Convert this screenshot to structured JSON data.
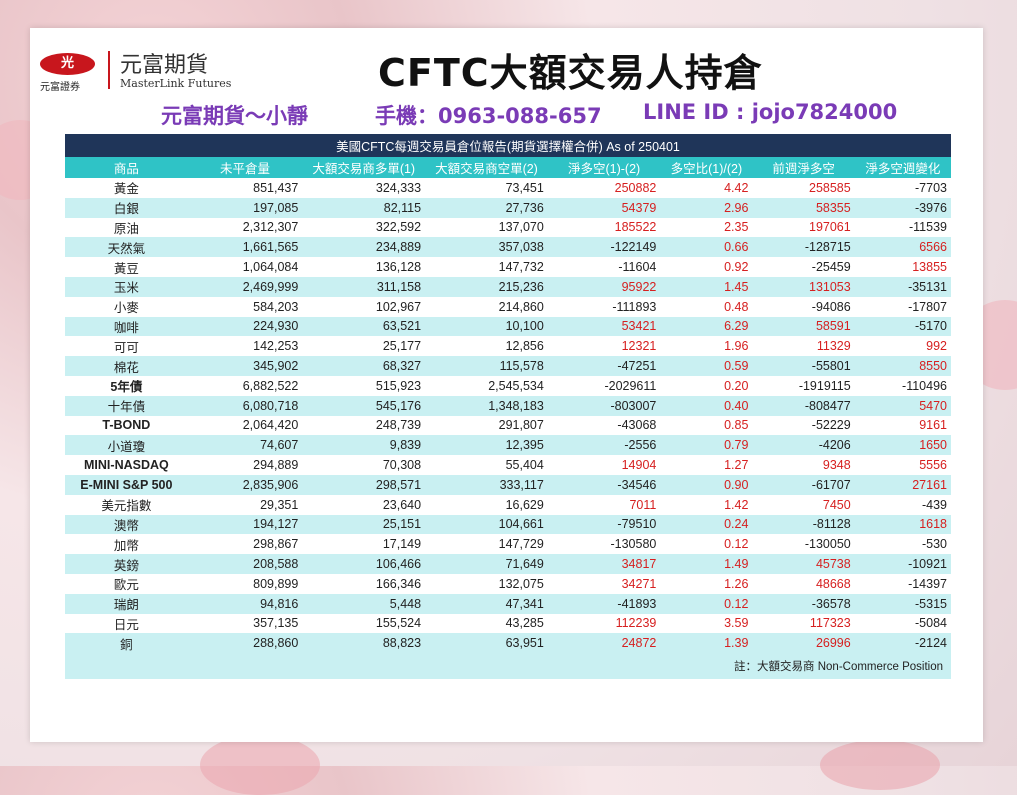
{
  "header": {
    "logo_mark": "光",
    "logo_sub": "元富證券",
    "logo_cn": "元富期貨",
    "logo_en": "MasterLink Futures",
    "title": "CFTC大額交易人持倉",
    "contact_name": "元富期貨～小靜",
    "contact_phone": "手機：0963-088-657",
    "contact_line": "LINE ID : jojo7824000"
  },
  "colors": {
    "header_navy": "#1f3559",
    "column_head_teal": "#2fc3c6",
    "row_alt": "#c9f0f2",
    "positive_red": "#d62020",
    "contact_purple": "#7a3bb6"
  },
  "table": {
    "report_title": "美國CFTC每週交易員倉位報告(期貨選擇權合併) As of  250401",
    "columns": [
      "商品",
      "未平倉量",
      "大額交易商多單(1)",
      "大額交易商空單(2)",
      "淨多空(1)-(2)",
      "多空比(1)/(2)",
      "前週淨多空",
      "淨多空週變化"
    ],
    "rows": [
      [
        "黃金",
        "851,437",
        "324,333",
        "73,451",
        "250882",
        "4.42",
        "258585",
        "-7703"
      ],
      [
        "白銀",
        "197,085",
        "82,115",
        "27,736",
        "54379",
        "2.96",
        "58355",
        "-3976"
      ],
      [
        "原油",
        "2,312,307",
        "322,592",
        "137,070",
        "185522",
        "2.35",
        "197061",
        "-11539"
      ],
      [
        "天然氣",
        "1,661,565",
        "234,889",
        "357,038",
        "-122149",
        "0.66",
        "-128715",
        "6566"
      ],
      [
        "黃豆",
        "1,064,084",
        "136,128",
        "147,732",
        "-11604",
        "0.92",
        "-25459",
        "13855"
      ],
      [
        "玉米",
        "2,469,999",
        "311,158",
        "215,236",
        "95922",
        "1.45",
        "131053",
        "-35131"
      ],
      [
        "小麥",
        "584,203",
        "102,967",
        "214,860",
        "-111893",
        "0.48",
        "-94086",
        "-17807"
      ],
      [
        "咖啡",
        "224,930",
        "63,521",
        "10,100",
        "53421",
        "6.29",
        "58591",
        "-5170"
      ],
      [
        "可可",
        "142,253",
        "25,177",
        "12,856",
        "12321",
        "1.96",
        "11329",
        "992"
      ],
      [
        "棉花",
        "345,902",
        "68,327",
        "115,578",
        "-47251",
        "0.59",
        "-55801",
        "8550"
      ],
      [
        "5年債",
        "6,882,522",
        "515,923",
        "2,545,534",
        "-2029611",
        "0.20",
        "-1919115",
        "-110496"
      ],
      [
        "十年債",
        "6,080,718",
        "545,176",
        "1,348,183",
        "-803007",
        "0.40",
        "-808477",
        "5470"
      ],
      [
        "T-BOND",
        "2,064,420",
        "248,739",
        "291,807",
        "-43068",
        "0.85",
        "-52229",
        "9161"
      ],
      [
        "小道瓊",
        "74,607",
        "9,839",
        "12,395",
        "-2556",
        "0.79",
        "-4206",
        "1650"
      ],
      [
        "MINI-NASDAQ",
        "294,889",
        "70,308",
        "55,404",
        "14904",
        "1.27",
        "9348",
        "5556"
      ],
      [
        "E-MINI S&P 500",
        "2,835,906",
        "298,571",
        "333,117",
        "-34546",
        "0.90",
        "-61707",
        "27161"
      ],
      [
        "美元指數",
        "29,351",
        "23,640",
        "16,629",
        "7011",
        "1.42",
        "7450",
        "-439"
      ],
      [
        "澳幣",
        "194,127",
        "25,151",
        "104,661",
        "-79510",
        "0.24",
        "-81128",
        "1618"
      ],
      [
        "加幣",
        "298,867",
        "17,149",
        "147,729",
        "-130580",
        "0.12",
        "-130050",
        "-530"
      ],
      [
        "英鎊",
        "208,588",
        "106,466",
        "71,649",
        "34817",
        "1.49",
        "45738",
        "-10921"
      ],
      [
        "歐元",
        "809,899",
        "166,346",
        "132,075",
        "34271",
        "1.26",
        "48668",
        "-14397"
      ],
      [
        "瑞朗",
        "94,816",
        "5,448",
        "47,341",
        "-41893",
        "0.12",
        "-36578",
        "-5315"
      ],
      [
        "日元",
        "357,135",
        "155,524",
        "43,285",
        "112239",
        "3.59",
        "117323",
        "-5084"
      ],
      [
        "銅",
        "288,860",
        "88,823",
        "63,951",
        "24872",
        "1.39",
        "26996",
        "-2124"
      ]
    ],
    "note": "註：大額交易商 Non-Commerce Position"
  }
}
